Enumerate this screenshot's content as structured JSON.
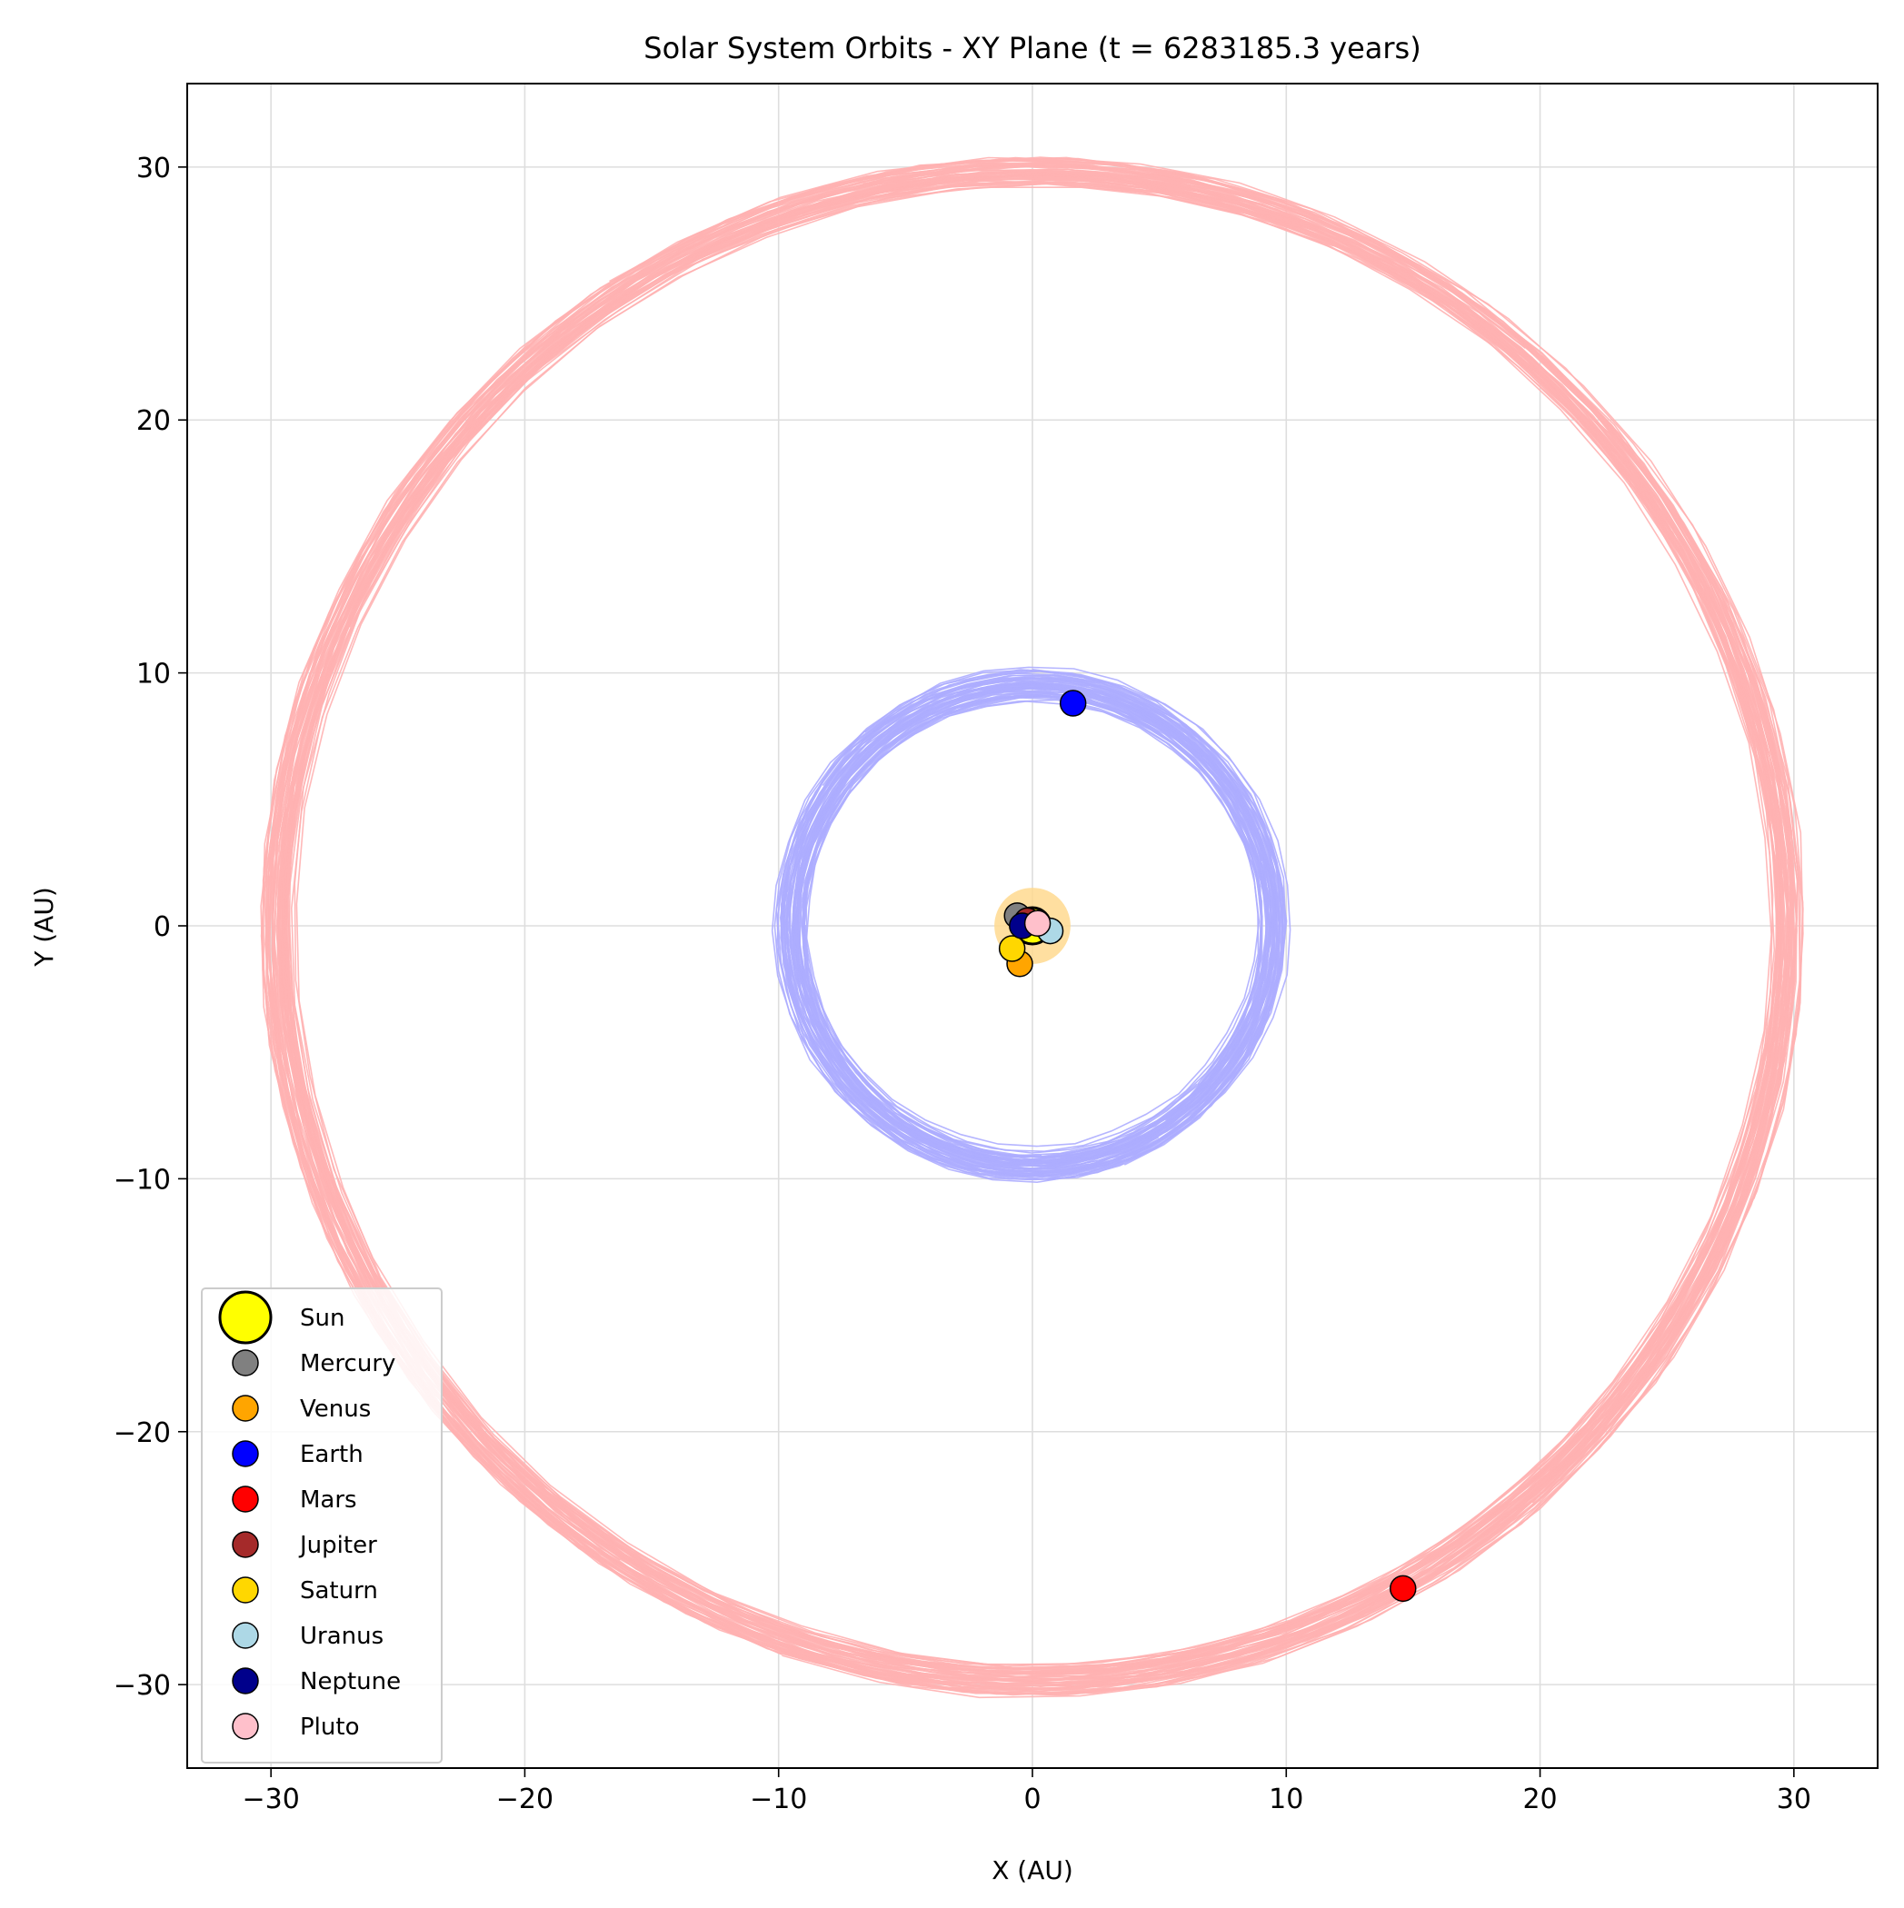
{
  "chart_data": {
    "type": "scatter",
    "title": "Solar System Orbits - XY Plane (t = 6283185.3 years)",
    "xlabel": "X (AU)",
    "ylabel": "Y (AU)",
    "xlim": [
      -33.3,
      33.3
    ],
    "ylim": [
      -33.3,
      33.3
    ],
    "xticks": [
      -30,
      -20,
      -10,
      0,
      10,
      20,
      30
    ],
    "yticks": [
      -30,
      -20,
      -10,
      0,
      10,
      20,
      30
    ],
    "xtick_labels": [
      "−30",
      "−20",
      "−10",
      "0",
      "10",
      "20",
      "30"
    ],
    "ytick_labels": [
      "−30",
      "−20",
      "−10",
      "0",
      "10",
      "20",
      "30"
    ],
    "grid": true,
    "legend_position": "lower-left",
    "orbit_bands": [
      {
        "body": "Mars",
        "color": "#ffb1b1",
        "inner_radius": 29.2,
        "outer_radius": 30.4
      },
      {
        "body": "Earth",
        "color": "#adadff",
        "inner_radius": 8.8,
        "outer_radius": 10.2
      },
      {
        "body": "Sun",
        "color": "#ffd98f",
        "inner_radius": 0,
        "outer_radius": 1.5
      }
    ],
    "series": [
      {
        "name": "Sun",
        "color": "#ffff00",
        "x": 0.0,
        "y": 0.0
      },
      {
        "name": "Mercury",
        "color": "#808080",
        "x": -0.6,
        "y": 0.4
      },
      {
        "name": "Venus",
        "color": "#ffa500",
        "x": -0.5,
        "y": -1.5
      },
      {
        "name": "Earth",
        "color": "#0000ff",
        "x": 1.6,
        "y": 8.8
      },
      {
        "name": "Mars",
        "color": "#ff0000",
        "x": 14.6,
        "y": -26.2
      },
      {
        "name": "Jupiter",
        "color": "#a52a2a",
        "x": -0.2,
        "y": 0.2
      },
      {
        "name": "Saturn",
        "color": "#ffd700",
        "x": -0.8,
        "y": -0.9
      },
      {
        "name": "Uranus",
        "color": "#add8e6",
        "x": 0.7,
        "y": -0.2
      },
      {
        "name": "Neptune",
        "color": "#00008b",
        "x": -0.4,
        "y": 0.0
      },
      {
        "name": "Pluto",
        "color": "#ffc0cb",
        "x": 0.2,
        "y": 0.1
      }
    ]
  }
}
